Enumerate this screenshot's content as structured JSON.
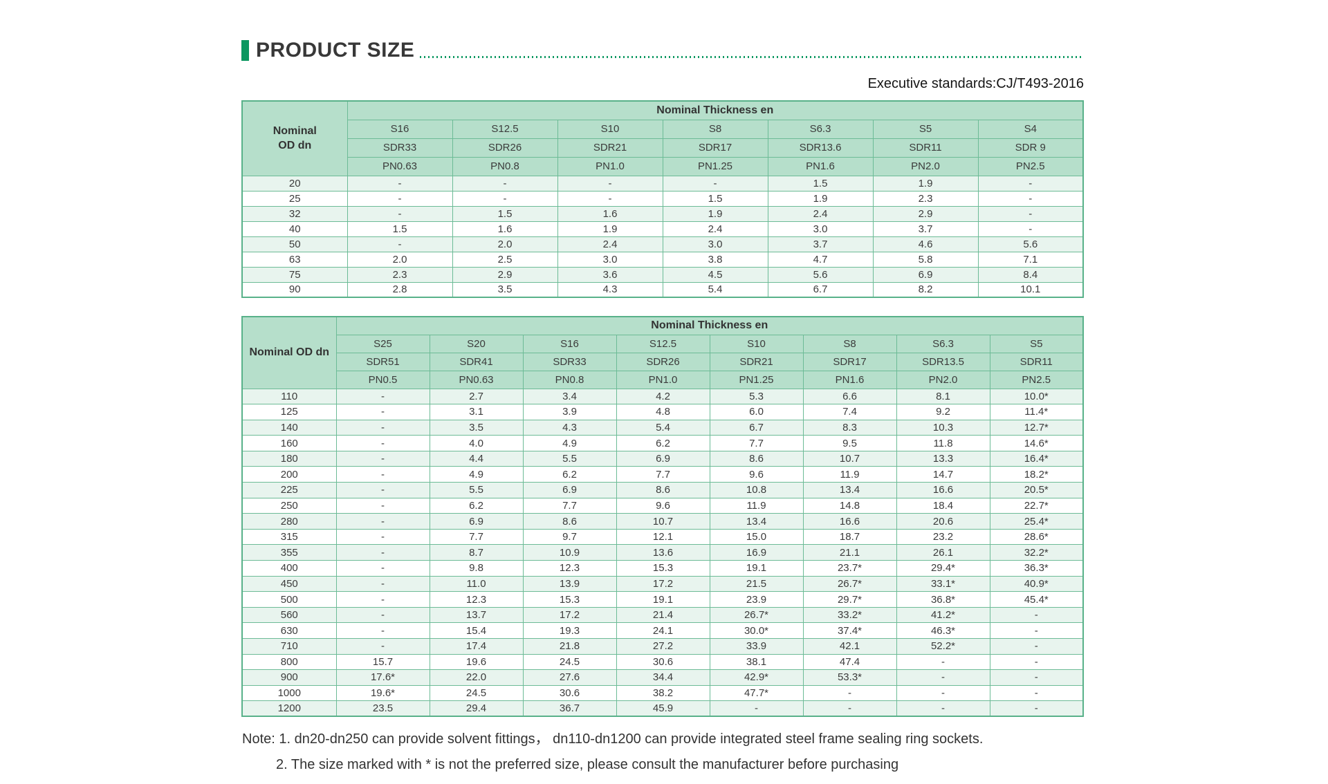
{
  "header": {
    "title": "PRODUCT SIZE",
    "standard": "Executive standards:CJ/T493-2016"
  },
  "table1": {
    "corner_label": "Nominal\nOD dn",
    "span_header": "Nominal Thickness en",
    "series": [
      "S16",
      "S12.5",
      "S10",
      "S8",
      "S6.3",
      "S5",
      "S4"
    ],
    "sdr": [
      "SDR33",
      "SDR26",
      "SDR21",
      "SDR17",
      "SDR13.6",
      "SDR11",
      "SDR 9"
    ],
    "pn": [
      "PN0.63",
      "PN0.8",
      "PN1.0",
      "PN1.25",
      "PN1.6",
      "PN2.0",
      "PN2.5"
    ],
    "rows": [
      {
        "dn": "20",
        "values": [
          "-",
          "-",
          "-",
          "-",
          "1.5",
          "1.9",
          "-"
        ]
      },
      {
        "dn": "25",
        "values": [
          "-",
          "-",
          "-",
          "1.5",
          "1.9",
          "2.3",
          "-"
        ]
      },
      {
        "dn": "32",
        "values": [
          "-",
          "1.5",
          "1.6",
          "1.9",
          "2.4",
          "2.9",
          "-"
        ]
      },
      {
        "dn": "40",
        "values": [
          "1.5",
          "1.6",
          "1.9",
          "2.4",
          "3.0",
          "3.7",
          "-"
        ]
      },
      {
        "dn": "50",
        "values": [
          "-",
          "2.0",
          "2.4",
          "3.0",
          "3.7",
          "4.6",
          "5.6"
        ]
      },
      {
        "dn": "63",
        "values": [
          "2.0",
          "2.5",
          "3.0",
          "3.8",
          "4.7",
          "5.8",
          "7.1"
        ]
      },
      {
        "dn": "75",
        "values": [
          "2.3",
          "2.9",
          "3.6",
          "4.5",
          "5.6",
          "6.9",
          "8.4"
        ]
      },
      {
        "dn": "90",
        "values": [
          "2.8",
          "3.5",
          "4.3",
          "5.4",
          "6.7",
          "8.2",
          "10.1"
        ]
      }
    ]
  },
  "table2": {
    "corner_label": "Nominal OD dn",
    "span_header": "Nominal Thickness en",
    "series": [
      "S25",
      "S20",
      "S16",
      "S12.5",
      "S10",
      "S8",
      "S6.3",
      "S5"
    ],
    "sdr": [
      "SDR51",
      "SDR41",
      "SDR33",
      "SDR26",
      "SDR21",
      "SDR17",
      "SDR13.5",
      "SDR11"
    ],
    "pn": [
      "PN0.5",
      "PN0.63",
      "PN0.8",
      "PN1.0",
      "PN1.25",
      "PN1.6",
      "PN2.0",
      "PN2.5"
    ],
    "rows": [
      {
        "dn": "110",
        "values": [
          "-",
          "2.7",
          "3.4",
          "4.2",
          "5.3",
          "6.6",
          "8.1",
          "10.0*"
        ]
      },
      {
        "dn": "125",
        "values": [
          "-",
          "3.1",
          "3.9",
          "4.8",
          "6.0",
          "7.4",
          "9.2",
          "11.4*"
        ]
      },
      {
        "dn": "140",
        "values": [
          "-",
          "3.5",
          "4.3",
          "5.4",
          "6.7",
          "8.3",
          "10.3",
          "12.7*"
        ]
      },
      {
        "dn": "160",
        "values": [
          "-",
          "4.0",
          "4.9",
          "6.2",
          "7.7",
          "9.5",
          "11.8",
          "14.6*"
        ]
      },
      {
        "dn": "180",
        "values": [
          "-",
          "4.4",
          "5.5",
          "6.9",
          "8.6",
          "10.7",
          "13.3",
          "16.4*"
        ]
      },
      {
        "dn": "200",
        "values": [
          "-",
          "4.9",
          "6.2",
          "7.7",
          "9.6",
          "11.9",
          "14.7",
          "18.2*"
        ]
      },
      {
        "dn": "225",
        "values": [
          "-",
          "5.5",
          "6.9",
          "8.6",
          "10.8",
          "13.4",
          "16.6",
          "20.5*"
        ]
      },
      {
        "dn": "250",
        "values": [
          "-",
          "6.2",
          "7.7",
          "9.6",
          "11.9",
          "14.8",
          "18.4",
          "22.7*"
        ]
      },
      {
        "dn": "280",
        "values": [
          "-",
          "6.9",
          "8.6",
          "10.7",
          "13.4",
          "16.6",
          "20.6",
          "25.4*"
        ]
      },
      {
        "dn": "315",
        "values": [
          "-",
          "7.7",
          "9.7",
          "12.1",
          "15.0",
          "18.7",
          "23.2",
          "28.6*"
        ]
      },
      {
        "dn": "355",
        "values": [
          "-",
          "8.7",
          "10.9",
          "13.6",
          "16.9",
          "21.1",
          "26.1",
          "32.2*"
        ]
      },
      {
        "dn": "400",
        "values": [
          "-",
          "9.8",
          "12.3",
          "15.3",
          "19.1",
          "23.7*",
          "29.4*",
          "36.3*"
        ]
      },
      {
        "dn": "450",
        "values": [
          "-",
          "11.0",
          "13.9",
          "17.2",
          "21.5",
          "26.7*",
          "33.1*",
          "40.9*"
        ]
      },
      {
        "dn": "500",
        "values": [
          "-",
          "12.3",
          "15.3",
          "19.1",
          "23.9",
          "29.7*",
          "36.8*",
          "45.4*"
        ]
      },
      {
        "dn": "560",
        "values": [
          "-",
          "13.7",
          "17.2",
          "21.4",
          "26.7*",
          "33.2*",
          "41.2*",
          "-"
        ]
      },
      {
        "dn": "630",
        "values": [
          "-",
          "15.4",
          "19.3",
          "24.1",
          "30.0*",
          "37.4*",
          "46.3*",
          "-"
        ]
      },
      {
        "dn": "710",
        "values": [
          "-",
          "17.4",
          "21.8",
          "27.2",
          "33.9",
          "42.1",
          "52.2*",
          "-"
        ]
      },
      {
        "dn": "800",
        "values": [
          "15.7",
          "19.6",
          "24.5",
          "30.6",
          "38.1",
          "47.4",
          "-",
          "-"
        ]
      },
      {
        "dn": "900",
        "values": [
          "17.6*",
          "22.0",
          "27.6",
          "34.4",
          "42.9*",
          "53.3*",
          "-",
          "-"
        ]
      },
      {
        "dn": "1000",
        "values": [
          "19.6*",
          "24.5",
          "30.6",
          "38.2",
          "47.7*",
          "-",
          "-",
          "-"
        ]
      },
      {
        "dn": "1200",
        "values": [
          "23.5",
          "29.4",
          "36.7",
          "45.9",
          "-",
          "-",
          "-",
          "-"
        ]
      }
    ]
  },
  "notes": [
    "Note: 1. dn20-dn250 can provide solvent fittings， dn110-dn1200 can provide integrated steel frame sealing ring sockets.",
    "2. The size marked with * is not the preferred size, please consult the manufacturer before purchasing"
  ],
  "colors": {
    "accent_green": "#0b9760",
    "header_bg": "#b6dfcb",
    "stripe_bg": "#e8f4ee",
    "border_green": "#6cbb96"
  }
}
